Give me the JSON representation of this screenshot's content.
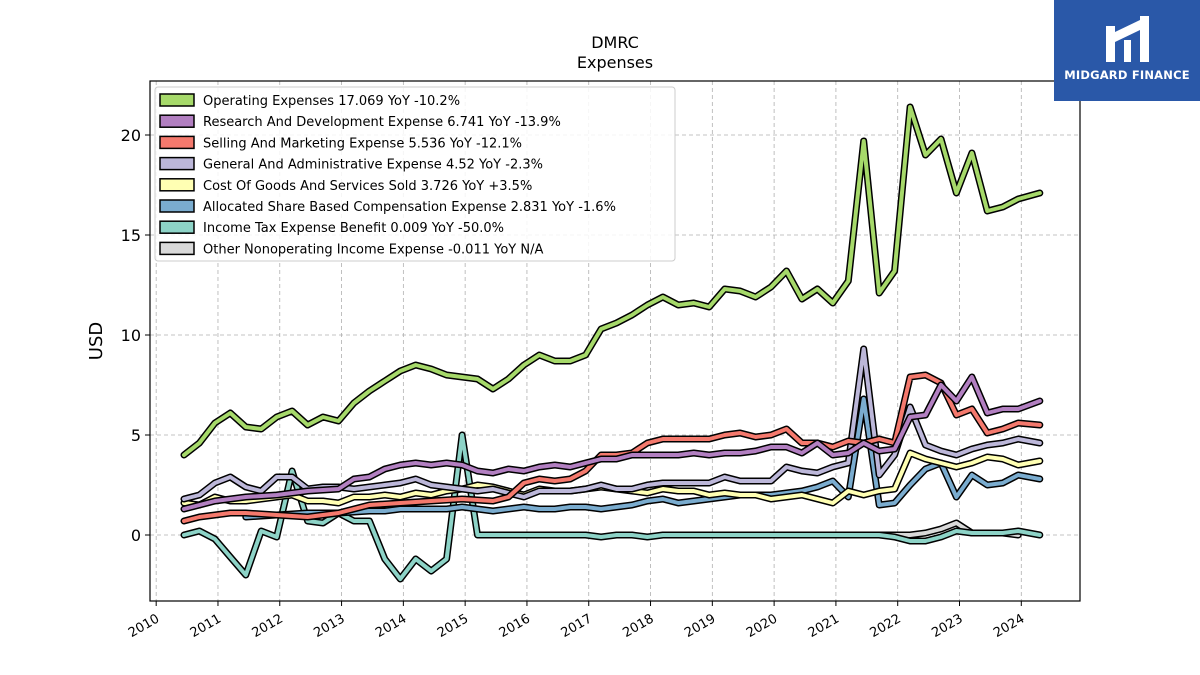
{
  "brand": {
    "name": "MIDGARD FINANCE",
    "color": "#2a58a8"
  },
  "chart_data": {
    "type": "line",
    "title": "DMRC",
    "subtitle": "Expenses",
    "ylabel": "USD",
    "xlabel": "",
    "xlim": [
      2009.9,
      2024.95
    ],
    "ylim": [
      -3.3,
      22.7
    ],
    "yticks": [
      0,
      5,
      10,
      15,
      20
    ],
    "xticks": [
      2010,
      2011,
      2012,
      2013,
      2014,
      2015,
      2016,
      2017,
      2018,
      2019,
      2020,
      2021,
      2022,
      2023,
      2024
    ],
    "grid": true,
    "legend_position": "top-left",
    "series": [
      {
        "name": "Operating Expenses",
        "legend": "Operating Expenses  17.069 YoY -10.2%",
        "color": "#a6d96a",
        "x": [
          2010.45,
          2010.7,
          2010.95,
          2011.2,
          2011.45,
          2011.7,
          2011.95,
          2012.2,
          2012.45,
          2012.7,
          2012.95,
          2013.2,
          2013.45,
          2013.7,
          2013.95,
          2014.2,
          2014.45,
          2014.7,
          2014.95,
          2015.2,
          2015.45,
          2015.7,
          2015.95,
          2016.2,
          2016.45,
          2016.7,
          2016.95,
          2017.2,
          2017.45,
          2017.7,
          2017.95,
          2018.2,
          2018.45,
          2018.7,
          2018.95,
          2019.2,
          2019.45,
          2019.7,
          2019.95,
          2020.2,
          2020.45,
          2020.7,
          2020.95,
          2021.2,
          2021.45,
          2021.7,
          2021.95,
          2022.2,
          2022.45,
          2022.7,
          2022.95,
          2023.2,
          2023.45,
          2023.7,
          2023.95,
          2024.3
        ],
        "y": [
          4.0,
          4.6,
          5.6,
          6.1,
          5.4,
          5.3,
          5.9,
          6.2,
          5.5,
          5.9,
          5.7,
          6.6,
          7.2,
          7.7,
          8.2,
          8.5,
          8.3,
          8.0,
          7.9,
          7.8,
          7.3,
          7.8,
          8.5,
          9.0,
          8.7,
          8.7,
          9.0,
          10.3,
          10.6,
          11.0,
          11.5,
          11.9,
          11.5,
          11.6,
          11.4,
          12.3,
          12.2,
          11.9,
          12.4,
          13.2,
          11.8,
          12.3,
          11.6,
          12.7,
          19.7,
          12.1,
          13.2,
          21.4,
          19.0,
          19.8,
          17.1,
          19.1,
          16.2,
          16.4,
          16.8,
          17.1
        ]
      },
      {
        "name": "Research And Development Expense",
        "legend": "Research And Development Expense  6.741 YoY -13.9%",
        "color": "#b27fc1",
        "x": [
          2010.45,
          2010.95,
          2011.45,
          2011.95,
          2012.45,
          2012.95,
          2013.2,
          2013.45,
          2013.7,
          2013.95,
          2014.2,
          2014.45,
          2014.7,
          2014.95,
          2015.2,
          2015.45,
          2015.7,
          2015.95,
          2016.2,
          2016.45,
          2016.7,
          2016.95,
          2017.2,
          2017.45,
          2017.7,
          2017.95,
          2018.2,
          2018.45,
          2018.7,
          2018.95,
          2019.2,
          2019.45,
          2019.7,
          2019.95,
          2020.2,
          2020.45,
          2020.7,
          2020.95,
          2021.2,
          2021.45,
          2021.7,
          2021.95,
          2022.2,
          2022.45,
          2022.7,
          2022.95,
          2023.2,
          2023.45,
          2023.7,
          2023.95,
          2024.3
        ],
        "y": [
          1.3,
          1.7,
          1.9,
          2.0,
          2.2,
          2.3,
          2.8,
          2.9,
          3.3,
          3.5,
          3.6,
          3.5,
          3.6,
          3.5,
          3.2,
          3.1,
          3.3,
          3.2,
          3.4,
          3.5,
          3.4,
          3.6,
          3.8,
          3.8,
          4.0,
          4.0,
          4.0,
          4.0,
          4.1,
          4.0,
          4.1,
          4.1,
          4.2,
          4.4,
          4.4,
          4.1,
          4.6,
          4.0,
          4.1,
          4.6,
          4.2,
          4.3,
          5.9,
          6.0,
          7.5,
          6.7,
          7.9,
          6.1,
          6.3,
          6.3,
          6.7
        ]
      },
      {
        "name": "Selling And Marketing Expense",
        "legend": "Selling And Marketing Expense  5.536 YoY -12.1%",
        "color": "#f4796d",
        "x": [
          2010.45,
          2010.7,
          2010.95,
          2011.2,
          2011.45,
          2011.95,
          2012.45,
          2012.95,
          2013.45,
          2013.95,
          2014.45,
          2014.95,
          2015.45,
          2015.7,
          2015.95,
          2016.2,
          2016.45,
          2016.7,
          2016.95,
          2017.2,
          2017.45,
          2017.7,
          2017.95,
          2018.2,
          2018.45,
          2018.7,
          2018.95,
          2019.2,
          2019.45,
          2019.7,
          2019.95,
          2020.2,
          2020.45,
          2020.7,
          2020.95,
          2021.2,
          2021.45,
          2021.7,
          2021.95,
          2022.2,
          2022.45,
          2022.7,
          2022.95,
          2023.2,
          2023.45,
          2023.7,
          2023.95,
          2024.3
        ],
        "y": [
          0.7,
          0.9,
          1.0,
          1.1,
          1.1,
          1.0,
          0.9,
          1.1,
          1.5,
          1.6,
          1.7,
          1.8,
          1.7,
          1.9,
          2.6,
          2.8,
          2.7,
          2.8,
          3.2,
          4.0,
          4.0,
          4.1,
          4.6,
          4.8,
          4.8,
          4.8,
          4.8,
          5.0,
          5.1,
          4.9,
          5.0,
          5.3,
          4.6,
          4.6,
          4.4,
          4.7,
          4.6,
          4.8,
          4.6,
          7.9,
          8.0,
          7.6,
          6.0,
          6.3,
          5.1,
          5.3,
          5.6,
          5.5
        ]
      },
      {
        "name": "General And Administrative Expense",
        "legend": "General And Administrative Expense  4.52 YoY -2.3%",
        "color": "#bcb7d9",
        "x": [
          2010.45,
          2010.7,
          2010.95,
          2011.2,
          2011.45,
          2011.7,
          2011.95,
          2012.2,
          2012.45,
          2012.7,
          2012.95,
          2013.2,
          2013.45,
          2013.7,
          2013.95,
          2014.2,
          2014.45,
          2014.7,
          2014.95,
          2015.2,
          2015.45,
          2015.7,
          2015.95,
          2016.2,
          2016.45,
          2016.7,
          2016.95,
          2017.2,
          2017.45,
          2017.7,
          2017.95,
          2018.2,
          2018.45,
          2018.7,
          2018.95,
          2019.2,
          2019.45,
          2019.7,
          2019.95,
          2020.2,
          2020.45,
          2020.7,
          2020.95,
          2021.2,
          2021.45,
          2021.7,
          2021.95,
          2022.2,
          2022.45,
          2022.7,
          2022.95,
          2023.2,
          2023.45,
          2023.7,
          2023.95,
          2024.3
        ],
        "y": [
          1.8,
          2.0,
          2.6,
          2.9,
          2.4,
          2.2,
          2.9,
          2.9,
          2.3,
          2.4,
          2.4,
          2.3,
          2.4,
          2.5,
          2.6,
          2.8,
          2.5,
          2.4,
          2.3,
          2.2,
          2.3,
          2.1,
          1.9,
          2.2,
          2.2,
          2.2,
          2.3,
          2.5,
          2.3,
          2.3,
          2.5,
          2.6,
          2.6,
          2.6,
          2.6,
          2.9,
          2.7,
          2.7,
          2.7,
          3.4,
          3.2,
          3.1,
          3.4,
          3.6,
          9.3,
          3.0,
          4.0,
          6.4,
          4.5,
          4.2,
          4.0,
          4.3,
          4.5,
          4.6,
          4.8,
          4.6
        ]
      },
      {
        "name": "Cost Of Goods And Services Sold",
        "legend": "Cost Of Goods And Services Sold  3.726 YoY +3.5%",
        "color": "#ffffb3",
        "x": [
          2010.45,
          2010.7,
          2010.95,
          2011.2,
          2011.45,
          2011.7,
          2011.95,
          2012.2,
          2012.45,
          2012.7,
          2012.95,
          2013.2,
          2013.45,
          2013.7,
          2013.95,
          2014.2,
          2014.45,
          2014.7,
          2014.95,
          2015.2,
          2015.45,
          2015.7,
          2015.95,
          2016.2,
          2016.45,
          2016.7,
          2016.95,
          2017.2,
          2017.45,
          2017.7,
          2017.95,
          2018.2,
          2018.45,
          2018.7,
          2018.95,
          2019.2,
          2019.45,
          2019.7,
          2019.95,
          2020.2,
          2020.45,
          2020.7,
          2020.95,
          2021.2,
          2021.45,
          2021.7,
          2021.95,
          2022.2,
          2022.45,
          2022.7,
          2022.95,
          2023.2,
          2023.45,
          2023.7,
          2023.95,
          2024.3
        ],
        "y": [
          1.6,
          1.5,
          1.9,
          1.7,
          1.7,
          1.8,
          1.9,
          2.0,
          1.7,
          1.7,
          1.6,
          1.9,
          1.9,
          2.0,
          1.9,
          2.1,
          2.0,
          2.2,
          2.3,
          2.5,
          2.4,
          2.2,
          2.0,
          2.3,
          2.2,
          2.2,
          2.3,
          2.4,
          2.3,
          2.2,
          2.1,
          2.3,
          2.2,
          2.2,
          2.0,
          2.1,
          2.0,
          2.0,
          1.8,
          1.9,
          2.0,
          1.8,
          1.6,
          2.2,
          2.0,
          2.2,
          2.3,
          4.1,
          3.8,
          3.6,
          3.4,
          3.6,
          3.9,
          3.8,
          3.5,
          3.7
        ]
      },
      {
        "name": "Allocated Share Based Compensation Expense",
        "legend": "Allocated Share Based Compensation Expense  2.831 YoY -1.6%",
        "color": "#7aaccf",
        "x": [
          2011.45,
          2011.95,
          2012.45,
          2012.95,
          2013.45,
          2013.7,
          2013.95,
          2014.2,
          2014.45,
          2014.7,
          2014.95,
          2015.2,
          2015.45,
          2015.7,
          2015.95,
          2016.2,
          2016.45,
          2016.7,
          2016.95,
          2017.2,
          2017.45,
          2017.7,
          2017.95,
          2018.2,
          2018.45,
          2018.7,
          2018.95,
          2019.2,
          2019.45,
          2019.7,
          2019.95,
          2020.2,
          2020.45,
          2020.7,
          2020.95,
          2021.2,
          2021.45,
          2021.7,
          2021.95,
          2022.2,
          2022.45,
          2022.7,
          2022.95,
          2023.2,
          2023.45,
          2023.7,
          2023.95,
          2024.3
        ],
        "y": [
          0.9,
          1.0,
          1.1,
          1.1,
          1.2,
          1.2,
          1.3,
          1.3,
          1.3,
          1.3,
          1.4,
          1.3,
          1.2,
          1.3,
          1.4,
          1.3,
          1.3,
          1.4,
          1.4,
          1.3,
          1.4,
          1.5,
          1.7,
          1.8,
          1.6,
          1.7,
          1.8,
          1.9,
          2.0,
          2.0,
          2.0,
          2.1,
          2.2,
          2.4,
          2.7,
          1.9,
          6.8,
          1.5,
          1.6,
          2.5,
          3.3,
          3.6,
          1.9,
          3.0,
          2.5,
          2.6,
          3.0,
          2.8
        ]
      },
      {
        "name": "Income Tax Expense Benefit",
        "legend": "Income Tax Expense Benefit  0.009 YoY -50.0%",
        "color": "#8dd3c7",
        "x": [
          2010.45,
          2010.7,
          2010.95,
          2011.2,
          2011.45,
          2011.7,
          2011.95,
          2012.2,
          2012.45,
          2012.7,
          2012.95,
          2013.2,
          2013.45,
          2013.7,
          2013.95,
          2014.2,
          2014.45,
          2014.7,
          2014.95,
          2015.2,
          2015.45,
          2015.7,
          2015.95,
          2016.2,
          2016.45,
          2016.7,
          2016.95,
          2017.2,
          2017.45,
          2017.7,
          2017.95,
          2018.2,
          2018.45,
          2018.7,
          2018.95,
          2019.2,
          2019.45,
          2019.7,
          2019.95,
          2020.2,
          2020.45,
          2020.7,
          2020.95,
          2021.2,
          2021.45,
          2021.7,
          2021.95,
          2022.2,
          2022.45,
          2022.7,
          2022.95,
          2023.2,
          2023.45,
          2023.7,
          2023.95,
          2024.3
        ],
        "y": [
          0.0,
          0.2,
          -0.2,
          -1.1,
          -2.0,
          0.2,
          -0.1,
          3.2,
          0.7,
          0.6,
          1.1,
          0.7,
          0.7,
          -1.2,
          -2.2,
          -1.2,
          -1.8,
          -1.2,
          5.0,
          0.0,
          0.0,
          0.0,
          0.0,
          0.0,
          0.0,
          0.0,
          0.0,
          -0.1,
          0.0,
          0.0,
          -0.1,
          0.0,
          0.0,
          0.0,
          0.0,
          0.0,
          0.0,
          0.0,
          0.0,
          0.0,
          0.0,
          0.0,
          0.0,
          0.0,
          0.0,
          0.0,
          -0.1,
          -0.3,
          -0.3,
          -0.1,
          0.2,
          0.1,
          0.1,
          0.1,
          0.2,
          0.0
        ]
      },
      {
        "name": "Other Nonoperating Income Expense",
        "legend": "Other Nonoperating Income Expense  -0.011 YoY N/A",
        "color": "#d9d9d9",
        "x": [
          2020.7,
          2020.95,
          2021.2,
          2021.45,
          2021.7,
          2021.95,
          2022.2,
          2022.45,
          2022.7,
          2022.95,
          2023.2,
          2023.45,
          2023.7,
          2023.95
        ],
        "y": [
          0.0,
          0.0,
          0.0,
          0.0,
          0.0,
          0.0,
          0.0,
          0.1,
          0.3,
          0.6,
          0.1,
          0.1,
          0.1,
          0.0
        ]
      }
    ]
  }
}
